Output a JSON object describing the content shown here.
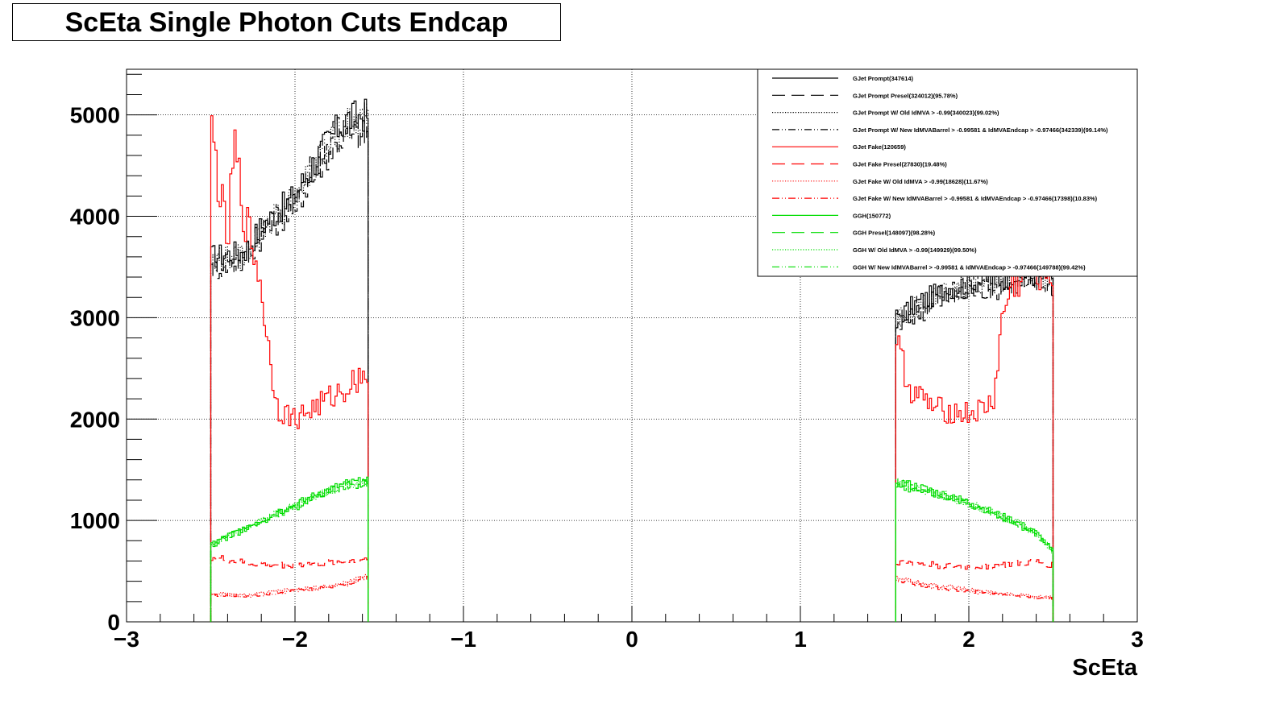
{
  "chart_data": {
    "type": "line",
    "title": "ScEta Single Photon Cuts Endcap",
    "xlabel": "ScEta",
    "ylabel": "",
    "xlim": [
      -3,
      3
    ],
    "ylim": [
      0,
      5450
    ],
    "grid": true,
    "legend_position": "top-right",
    "x_ticks": [
      "−3",
      "−2",
      "−1",
      "0",
      "1",
      "2",
      "3"
    ],
    "y_ticks": [
      "0",
      "1000",
      "2000",
      "3000",
      "4000",
      "5000"
    ],
    "regions": [
      [
        -2.5,
        -1.566
      ],
      [
        1.566,
        2.5
      ]
    ],
    "series": [
      {
        "name": "GJet Prompt(347614)",
        "color": "#000000",
        "dash": "solid",
        "profile_neg": [
          [
            -2.5,
            3600
          ],
          [
            -2.3,
            3650
          ],
          [
            -2.2,
            3900
          ],
          [
            -2.1,
            4050
          ],
          [
            -2.0,
            4200
          ],
          [
            -1.9,
            4500
          ],
          [
            -1.8,
            4750
          ],
          [
            -1.7,
            4950
          ],
          [
            -1.6,
            5000
          ]
        ],
        "profile_pos": [
          [
            1.566,
            3000
          ],
          [
            1.7,
            3150
          ],
          [
            1.9,
            3300
          ],
          [
            2.1,
            3380
          ],
          [
            2.3,
            3420
          ],
          [
            2.5,
            3420
          ]
        ]
      },
      {
        "name": "GJet Prompt Presel(324012)(95.78%)",
        "color": "#000000",
        "dash": "long-dash",
        "profile_neg": [
          [
            -2.5,
            3480
          ],
          [
            -2.3,
            3550
          ],
          [
            -2.2,
            3800
          ],
          [
            -2.1,
            3950
          ],
          [
            -2.0,
            4100
          ],
          [
            -1.9,
            4380
          ],
          [
            -1.8,
            4620
          ],
          [
            -1.7,
            4800
          ],
          [
            -1.6,
            4800
          ]
        ],
        "profile_pos": [
          [
            1.566,
            2900
          ],
          [
            1.7,
            3050
          ],
          [
            1.9,
            3200
          ],
          [
            2.1,
            3280
          ],
          [
            2.3,
            3320
          ],
          [
            2.5,
            3320
          ]
        ]
      },
      {
        "name": "GJet Prompt W/ Old IdMVA > -0.99(340023)(99.02%)",
        "color": "#000000",
        "dash": "dotted",
        "profile_neg": [
          [
            -2.5,
            3560
          ],
          [
            -2.3,
            3610
          ],
          [
            -2.2,
            3860
          ],
          [
            -2.1,
            4010
          ],
          [
            -2.0,
            4160
          ],
          [
            -1.9,
            4460
          ],
          [
            -1.8,
            4710
          ],
          [
            -1.7,
            4900
          ],
          [
            -1.6,
            4950
          ]
        ],
        "profile_pos": [
          [
            1.566,
            2970
          ],
          [
            1.7,
            3120
          ],
          [
            1.9,
            3270
          ],
          [
            2.1,
            3350
          ],
          [
            2.3,
            3390
          ],
          [
            2.5,
            3390
          ]
        ]
      },
      {
        "name": "GJet Prompt W/ New IdMVABarrel > -0.99581 & IdMVAEndcap > -0.97466(342339)(99.14%)",
        "color": "#000000",
        "dash": "dash-dot-dot",
        "profile_neg": [
          [
            -2.5,
            3570
          ],
          [
            -2.3,
            3620
          ],
          [
            -2.2,
            3870
          ],
          [
            -2.1,
            4020
          ],
          [
            -2.0,
            4170
          ],
          [
            -1.9,
            4470
          ],
          [
            -1.8,
            4720
          ],
          [
            -1.7,
            4910
          ],
          [
            -1.6,
            4960
          ]
        ],
        "profile_pos": [
          [
            1.566,
            2975
          ],
          [
            1.7,
            3125
          ],
          [
            1.9,
            3275
          ],
          [
            2.1,
            3355
          ],
          [
            2.3,
            3395
          ],
          [
            2.5,
            3395
          ]
        ]
      },
      {
        "name": "GJet Fake(120659)",
        "color": "#ff0000",
        "dash": "solid",
        "profile_neg": [
          [
            -2.49,
            4800
          ],
          [
            -2.45,
            4300
          ],
          [
            -2.4,
            3700
          ],
          [
            -2.36,
            4700
          ],
          [
            -2.3,
            4000
          ],
          [
            -2.25,
            3700
          ],
          [
            -2.2,
            3300
          ],
          [
            -2.15,
            2600
          ],
          [
            -2.1,
            2100
          ],
          [
            -2.0,
            2000
          ],
          [
            -1.9,
            2100
          ],
          [
            -1.8,
            2200
          ],
          [
            -1.7,
            2300
          ],
          [
            -1.6,
            2450
          ]
        ],
        "profile_pos": [
          [
            1.566,
            2800
          ],
          [
            1.65,
            2300
          ],
          [
            1.8,
            2100
          ],
          [
            2.0,
            2050
          ],
          [
            2.1,
            2100
          ],
          [
            2.15,
            2200
          ],
          [
            2.2,
            3000
          ],
          [
            2.25,
            3300
          ],
          [
            2.35,
            3450
          ],
          [
            2.5,
            3450
          ]
        ]
      },
      {
        "name": "GJet Fake Presel(27830)(19.48%)",
        "color": "#ff0000",
        "dash": "long-dash",
        "profile_neg": [
          [
            -2.5,
            640
          ],
          [
            -2.3,
            580
          ],
          [
            -2.1,
            560
          ],
          [
            -1.9,
            570
          ],
          [
            -1.7,
            590
          ],
          [
            -1.6,
            620
          ]
        ],
        "profile_pos": [
          [
            1.566,
            600
          ],
          [
            1.8,
            560
          ],
          [
            2.0,
            540
          ],
          [
            2.2,
            560
          ],
          [
            2.4,
            590
          ],
          [
            2.5,
            560
          ]
        ]
      },
      {
        "name": "GJet Fake W/ Old IdMVA > -0.99(18628)(11.67%)",
        "color": "#ff0000",
        "dash": "dotted",
        "profile_neg": [
          [
            -2.5,
            280
          ],
          [
            -2.3,
            260
          ],
          [
            -2.1,
            300
          ],
          [
            -1.9,
            330
          ],
          [
            -1.7,
            380
          ],
          [
            -1.6,
            440
          ]
        ],
        "profile_pos": [
          [
            1.566,
            440
          ],
          [
            1.8,
            360
          ],
          [
            2.0,
            320
          ],
          [
            2.2,
            280
          ],
          [
            2.4,
            250
          ],
          [
            2.5,
            240
          ]
        ]
      },
      {
        "name": "GJet Fake W/ New IdMVABarrel > -0.99581 & IdMVAEndcap > -0.97466(17398)(10.83%)",
        "color": "#ff0000",
        "dash": "dash-dot-dot",
        "profile_neg": [
          [
            -2.5,
            270
          ],
          [
            -2.3,
            250
          ],
          [
            -2.1,
            290
          ],
          [
            -1.9,
            320
          ],
          [
            -1.7,
            370
          ],
          [
            -1.6,
            430
          ]
        ],
        "profile_pos": [
          [
            1.566,
            420
          ],
          [
            1.8,
            340
          ],
          [
            2.0,
            300
          ],
          [
            2.2,
            270
          ],
          [
            2.4,
            240
          ],
          [
            2.5,
            230
          ]
        ]
      },
      {
        "name": "GGH(150772)",
        "color": "#00dd00",
        "dash": "solid",
        "profile_neg": [
          [
            -2.5,
            760
          ],
          [
            -2.4,
            850
          ],
          [
            -2.3,
            920
          ],
          [
            -2.2,
            1000
          ],
          [
            -2.1,
            1080
          ],
          [
            -2.0,
            1150
          ],
          [
            -1.9,
            1230
          ],
          [
            -1.8,
            1300
          ],
          [
            -1.7,
            1360
          ],
          [
            -1.6,
            1380
          ]
        ],
        "profile_pos": [
          [
            1.566,
            1380
          ],
          [
            1.7,
            1330
          ],
          [
            1.8,
            1280
          ],
          [
            1.9,
            1230
          ],
          [
            2.0,
            1180
          ],
          [
            2.1,
            1110
          ],
          [
            2.2,
            1040
          ],
          [
            2.3,
            970
          ],
          [
            2.4,
            880
          ],
          [
            2.5,
            700
          ]
        ]
      },
      {
        "name": "GGH Presel(148097)(98.28%)",
        "color": "#00dd00",
        "dash": "long-dash",
        "profile_neg": [
          [
            -2.5,
            745
          ],
          [
            -2.4,
            835
          ],
          [
            -2.3,
            905
          ],
          [
            -2.2,
            985
          ],
          [
            -2.1,
            1060
          ],
          [
            -2.0,
            1130
          ],
          [
            -1.9,
            1210
          ],
          [
            -1.8,
            1280
          ],
          [
            -1.7,
            1335
          ],
          [
            -1.6,
            1355
          ]
        ],
        "profile_pos": [
          [
            1.566,
            1355
          ],
          [
            1.7,
            1305
          ],
          [
            1.8,
            1255
          ],
          [
            1.9,
            1210
          ],
          [
            2.0,
            1160
          ],
          [
            2.1,
            1090
          ],
          [
            2.2,
            1020
          ],
          [
            2.3,
            955
          ],
          [
            2.4,
            865
          ],
          [
            2.5,
            690
          ]
        ]
      },
      {
        "name": "GGH W/ Old IdMVA > -0.99(149929)(99.50%)",
        "color": "#00dd00",
        "dash": "dotted",
        "profile_neg": [
          [
            -2.5,
            755
          ],
          [
            -2.4,
            845
          ],
          [
            -2.3,
            915
          ],
          [
            -2.2,
            995
          ],
          [
            -2.1,
            1075
          ],
          [
            -2.0,
            1145
          ],
          [
            -1.9,
            1225
          ],
          [
            -1.8,
            1295
          ],
          [
            -1.7,
            1353
          ],
          [
            -1.6,
            1373
          ]
        ],
        "profile_pos": [
          [
            1.566,
            1373
          ],
          [
            1.7,
            1323
          ],
          [
            1.8,
            1273
          ],
          [
            1.9,
            1223
          ],
          [
            2.0,
            1173
          ],
          [
            2.1,
            1104
          ],
          [
            2.2,
            1035
          ],
          [
            2.3,
            965
          ],
          [
            2.4,
            876
          ],
          [
            2.5,
            697
          ]
        ]
      },
      {
        "name": "GGH W/ New IdMVABarrel > -0.99581 & IdMVAEndcap > -0.97466(149788)(99.42%)",
        "color": "#00dd00",
        "dash": "dash-dot-dot",
        "profile_neg": [
          [
            -2.5,
            754
          ],
          [
            -2.4,
            844
          ],
          [
            -2.3,
            914
          ],
          [
            -2.2,
            994
          ],
          [
            -2.1,
            1073
          ],
          [
            -2.0,
            1143
          ],
          [
            -1.9,
            1222
          ],
          [
            -1.8,
            1292
          ],
          [
            -1.7,
            1351
          ],
          [
            -1.6,
            1371
          ]
        ],
        "profile_pos": [
          [
            1.566,
            1371
          ],
          [
            1.7,
            1321
          ],
          [
            1.8,
            1271
          ],
          [
            1.9,
            1221
          ],
          [
            2.0,
            1171
          ],
          [
            2.1,
            1102
          ],
          [
            2.2,
            1033
          ],
          [
            2.3,
            963
          ],
          [
            2.4,
            874
          ],
          [
            2.5,
            696
          ]
        ]
      }
    ]
  }
}
